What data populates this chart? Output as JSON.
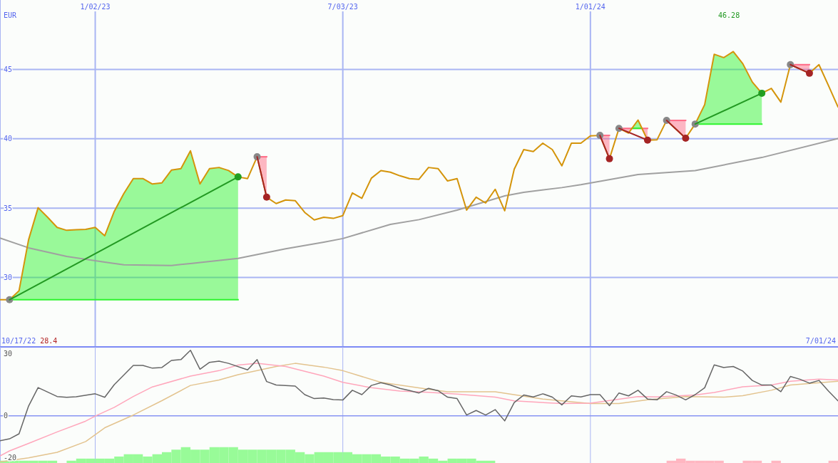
{
  "chart_data": [
    {
      "type": "line",
      "ylabel": "EUR",
      "x": [
        "2022-10-24",
        "2022-10-31",
        "2022-11-07",
        "2022-11-14",
        "2022-11-21",
        "2022-11-28",
        "2022-12-05",
        "2022-12-12",
        "2022-12-19",
        "2022-12-26",
        "2023-01-02",
        "2023-01-09",
        "2023-01-16",
        "2023-01-23",
        "2023-01-30",
        "2023-02-06",
        "2023-02-13",
        "2023-02-20",
        "2023-02-27",
        "2023-03-06",
        "2023-03-13",
        "2023-03-20",
        "2023-03-27",
        "2023-04-03",
        "2023-04-10",
        "2023-04-17",
        "2023-04-24",
        "2023-05-01",
        "2023-05-08",
        "2023-05-15",
        "2023-05-22",
        "2023-05-29",
        "2023-06-05",
        "2023-06-12",
        "2023-06-19",
        "2023-06-26",
        "2023-07-03",
        "2023-07-10",
        "2023-07-17",
        "2023-07-24",
        "2023-07-31",
        "2023-08-07",
        "2023-08-14",
        "2023-08-21",
        "2023-08-28",
        "2023-09-04",
        "2023-09-11",
        "2023-09-18",
        "2023-09-25",
        "2023-10-02",
        "2023-10-09",
        "2023-10-16",
        "2023-10-23",
        "2023-10-30",
        "2023-11-06",
        "2023-11-13",
        "2023-11-20",
        "2023-11-27",
        "2023-12-04",
        "2023-12-11",
        "2023-12-18",
        "2023-12-25",
        "2024-01-01",
        "2024-01-08",
        "2024-01-15",
        "2024-01-22",
        "2024-01-29",
        "2024-02-05",
        "2024-02-12",
        "2024-02-19",
        "2024-02-26",
        "2024-03-04",
        "2024-03-11",
        "2024-03-18",
        "2024-03-25",
        "2024-04-01",
        "2024-04-08",
        "2024-04-15",
        "2024-04-22",
        "2024-04-29",
        "2024-05-06",
        "2024-05-13",
        "2024-05-20",
        "2024-05-27",
        "2024-06-03",
        "2024-06-10",
        "2024-06-17",
        "2024-06-24",
        "2024-07-01"
      ],
      "xlim": [
        "2022-10-24",
        "2024-07-01"
      ],
      "xticks": [
        {
          "value": "2023-01-02",
          "label": "1/02/23"
        },
        {
          "value": "2023-07-03",
          "label": "7/03/23"
        },
        {
          "value": "2024-01-01",
          "label": "1/01/24"
        }
      ],
      "ylim": [
        25,
        50
      ],
      "yticks": [
        30,
        35,
        40,
        45
      ],
      "grid": true,
      "annotations": [
        "10/17/22",
        "28.4",
        "46.28",
        "7/01/24"
      ],
      "series": [
        {
          "type": "line",
          "color": "#2ef52e",
          "x": [
            "2022-10-31",
            "2022-11-07",
            "2022-11-14",
            "2022-11-21",
            "2022-11-28",
            "2022-12-05",
            "2022-12-12",
            "2022-12-19",
            "2022-12-26",
            "2023-01-02",
            "2023-01-09",
            "2023-01-16",
            "2023-01-23",
            "2023-01-30",
            "2023-02-06",
            "2023-02-13",
            "2023-02-20",
            "2023-02-27",
            "2023-03-06",
            "2023-03-13",
            "2023-03-20",
            "2023-03-27",
            "2023-04-03",
            "2023-04-10",
            "2023-04-17"
          ],
          "values": [
            28.4,
            28.4,
            28.4,
            28.4,
            28.4,
            28.4,
            28.4,
            28.4,
            28.4,
            28.4,
            28.4,
            28.4,
            28.4,
            28.4,
            28.4,
            28.4,
            28.4,
            28.4,
            28.4,
            28.4,
            28.4,
            28.4,
            28.4,
            28.4,
            28.4
          ],
          "upper": [
            28.4,
            29.05,
            32.72,
            35.03,
            34.34,
            33.61,
            33.4,
            33.44,
            33.47,
            33.61,
            33.01,
            34.77,
            36.05,
            37.13,
            37.13,
            36.74,
            36.82,
            37.74,
            37.85,
            39.13,
            36.74,
            37.85,
            37.93,
            37.71,
            37.25
          ],
          "lower": [
            28.4,
            28.4,
            28.4,
            28.4,
            28.4,
            28.4,
            28.4,
            28.4,
            28.4,
            28.4,
            28.4,
            28.4,
            28.4,
            28.4,
            28.4,
            28.4,
            28.4,
            28.4,
            28.4,
            28.4,
            28.4,
            28.4,
            28.4,
            28.4,
            28.4
          ]
        },
        {
          "type": "line",
          "color": "#ff6982",
          "x": [
            "2023-05-01",
            "2023-05-08"
          ],
          "values": [
            38.7,
            38.7
          ],
          "upper": [
            38.7,
            38.7
          ],
          "lower": [
            38.7,
            35.79
          ]
        },
        {
          "type": "line",
          "color": "#ff6983",
          "x": [
            "2024-01-08",
            "2024-01-15"
          ],
          "values": [
            40.24,
            40.24
          ],
          "upper": [
            40.24,
            40.24
          ],
          "lower": [
            40.24,
            38.56
          ]
        },
        {
          "type": "line",
          "color": "#ff6984",
          "x": [
            "2024-01-22",
            "2024-01-29",
            "2024-01-31T13:00",
            "2024-02-07T22:00",
            "2024-02-12"
          ],
          "values": [
            40.75,
            40.75,
            40.75,
            40.75,
            40.75
          ],
          "upper": [
            40.75,
            40.75,
            40.75,
            40.75,
            40.75
          ],
          "lower": [
            40.75,
            40.41,
            40.75,
            40.75,
            39.9
          ]
        },
        {
          "type": "line",
          "color": "#2ef42e",
          "x": [
            "2024-01-31T13:00",
            "2024-02-05",
            "2024-02-07T22:00"
          ],
          "values": [
            40.75,
            40.75,
            40.75
          ],
          "upper": [
            40.75,
            41.35,
            40.75
          ],
          "lower": [
            40.75,
            40.75,
            40.75
          ]
        },
        {
          "type": "line",
          "color": "#ff6985",
          "x": [
            "2024-02-26",
            "2024-03-04",
            "2024-03-11"
          ],
          "values": [
            41.32,
            41.32,
            41.32
          ],
          "upper": [
            41.32,
            41.32,
            41.32
          ],
          "lower": [
            41.32,
            40.68,
            40.04
          ]
        },
        {
          "type": "line",
          "color": "#2df52e",
          "x": [
            "2024-03-18",
            "2024-03-25",
            "2024-04-01",
            "2024-04-08",
            "2024-04-15",
            "2024-04-22",
            "2024-04-29",
            "2024-05-06"
          ],
          "values": [
            41.06,
            41.06,
            41.06,
            41.06,
            41.06,
            41.06,
            41.06,
            41.06
          ],
          "upper": [
            41.06,
            42.46,
            46.09,
            45.85,
            46.28,
            45.41,
            44.09,
            43.28
          ],
          "lower": [
            41.06,
            41.06,
            41.06,
            41.06,
            41.06,
            41.06,
            41.06,
            41.06
          ]
        },
        {
          "type": "line",
          "color": "#ff6986",
          "x": [
            "2024-05-27",
            "2024-06-03",
            "2024-06-10"
          ],
          "values": [
            45.34,
            45.34,
            45.34
          ],
          "upper": [
            45.34,
            45.34,
            45.34
          ],
          "lower": [
            45.34,
            45.03,
            44.72
          ]
        },
        {
          "color": "#a0a0a0",
          "x": [
            "2022-10-24",
            "2022-11-14",
            "2022-12-12",
            "2023-01-09",
            "2023-01-23",
            "2023-02-27",
            "2023-03-13",
            "2023-04-17",
            "2023-05-22",
            "2023-06-19",
            "2023-07-03",
            "2023-08-07",
            "2023-08-28",
            "2023-09-25",
            "2023-10-30",
            "2023-11-13",
            "2023-12-11",
            "2023-12-25",
            "2024-02-05",
            "2024-03-18",
            "2024-05-06",
            "2024-07-01"
          ],
          "values": [
            32.84,
            32.14,
            31.52,
            31.11,
            30.92,
            30.87,
            31.01,
            31.38,
            32.07,
            32.55,
            32.81,
            33.83,
            34.17,
            34.86,
            35.88,
            36.14,
            36.48,
            36.69,
            37.42,
            37.71,
            38.65,
            40.02
          ]
        },
        {
          "color": "#d4940a",
          "values": [
            28.4,
            28.4,
            29.05,
            32.72,
            35.03,
            34.34,
            33.61,
            33.4,
            33.44,
            33.47,
            33.61,
            33.01,
            34.77,
            36.05,
            37.13,
            37.13,
            36.74,
            36.82,
            37.74,
            37.85,
            39.13,
            36.74,
            37.85,
            37.93,
            37.71,
            37.25,
            37.13,
            38.7,
            35.79,
            35.33,
            35.59,
            35.54,
            34.69,
            34.15,
            34.34,
            34.26,
            34.46,
            36.1,
            35.71,
            37.16,
            37.71,
            37.59,
            37.33,
            37.13,
            37.08,
            37.93,
            37.85,
            36.96,
            37.13,
            34.86,
            35.79,
            35.37,
            36.36,
            34.81,
            37.81,
            39.22,
            39.08,
            39.68,
            39.22,
            38.05,
            39.68,
            39.68,
            40.21,
            40.24,
            38.56,
            40.75,
            40.41,
            41.35,
            39.9,
            39.93,
            41.32,
            40.68,
            40.04,
            41.06,
            42.46,
            46.09,
            45.85,
            46.28,
            45.41,
            44.09,
            43.28,
            43.63,
            42.64,
            45.34,
            45.03,
            44.72,
            45.34,
            43.83,
            42.29
          ]
        },
        {
          "type": "scatter",
          "color": "#888888",
          "marker": "circle",
          "x": [
            "2022-10-31",
            "2023-05-01",
            "2024-01-08",
            "2024-01-22",
            "2024-02-26",
            "2024-03-18",
            "2024-05-27"
          ],
          "values": [
            28.4,
            38.7,
            40.24,
            40.75,
            41.32,
            41.06,
            45.34
          ]
        },
        {
          "type": "scatter",
          "color": "#22a022",
          "marker": "circle",
          "x": [
            "2023-04-17",
            "2024-05-06"
          ],
          "values": [
            37.25,
            43.28
          ]
        },
        {
          "type": "scatter",
          "color": "#a52424",
          "marker": "circle",
          "x": [
            "2023-05-08",
            "2024-01-15",
            "2024-02-12",
            "2024-03-11",
            "2024-06-10"
          ],
          "values": [
            35.79,
            38.56,
            39.9,
            40.04,
            44.72
          ]
        },
        {
          "type": "line",
          "color": "#229922",
          "x": [
            "2022-10-31",
            "2023-04-17"
          ],
          "values": [
            28.4,
            37.25
          ]
        },
        {
          "type": "line",
          "color": "#a52424",
          "x": [
            "2023-05-01",
            "2023-05-08"
          ],
          "values": [
            38.7,
            35.79
          ]
        },
        {
          "type": "line",
          "color": "#a52424",
          "x": [
            "2024-01-08",
            "2024-01-15"
          ],
          "values": [
            40.24,
            38.56
          ]
        },
        {
          "type": "line",
          "color": "#a52424",
          "x": [
            "2024-01-22",
            "2024-02-12"
          ],
          "values": [
            40.75,
            39.9
          ]
        },
        {
          "type": "line",
          "color": "#a52424",
          "x": [
            "2024-02-26",
            "2024-03-11"
          ],
          "values": [
            41.32,
            40.04
          ]
        },
        {
          "type": "line",
          "color": "#229922",
          "x": [
            "2024-03-18",
            "2024-05-06"
          ],
          "values": [
            41.06,
            43.28
          ]
        },
        {
          "type": "line",
          "color": "#a52424",
          "x": [
            "2024-05-27",
            "2024-06-10"
          ],
          "values": [
            45.34,
            44.72
          ]
        }
      ]
    },
    {
      "type": "line",
      "xlim": [
        "2022-10-24",
        "2024-07-01"
      ],
      "xticks": [
        {
          "value": "2023-01-02",
          "label": null
        },
        {
          "value": "2023-07-03",
          "label": null
        },
        {
          "value": "2024-01-01",
          "label": null
        }
      ],
      "ylim": [
        -22.6,
        33.1
      ],
      "yticks": [
        -20,
        0,
        30
      ],
      "grid": "x",
      "tick_labels": "y",
      "ref_lines": [
        {
          "axis": "y",
          "value": 0,
          "color": "#8794f3"
        }
      ],
      "series": [
        {
          "type": "bar",
          "x": [
            "2022-10-27T12:00",
            "2022-11-03T12:00",
            "2022-11-10T12:00",
            "2022-11-17T12:00",
            "2022-11-24T12:00",
            "2022-12-01T12:00",
            "2022-12-15T12:00",
            "2022-12-22T12:00",
            "2022-12-29T12:00",
            "2023-01-05T12:00",
            "2023-01-12T12:00",
            "2023-01-19T12:00",
            "2023-01-26T12:00",
            "2023-02-02T12:00",
            "2023-02-09T12:00",
            "2023-02-16T12:00",
            "2023-02-23T12:00",
            "2023-03-02T12:00",
            "2023-03-09T12:00",
            "2023-03-16T12:00",
            "2023-03-23T12:00",
            "2023-03-30T12:00",
            "2023-04-06T12:00",
            "2023-04-13T12:00",
            "2023-04-20T12:00",
            "2023-04-27T12:00",
            "2023-05-04T12:00",
            "2023-05-11T12:00",
            "2023-05-18T12:00",
            "2023-05-25T12:00",
            "2023-06-01T12:00",
            "2023-06-08T12:00",
            "2023-06-15T12:00",
            "2023-06-22T12:00",
            "2023-06-29T12:00",
            "2023-07-06T12:00",
            "2023-07-13T12:00",
            "2023-07-20T12:00",
            "2023-07-27T12:00",
            "2023-08-03T12:00",
            "2023-08-10T12:00",
            "2023-08-17T12:00",
            "2023-08-24T12:00",
            "2023-08-31T12:00",
            "2023-09-07T12:00",
            "2023-09-14T12:00",
            "2023-09-21T12:00",
            "2023-09-28T12:00",
            "2023-10-05T12:00",
            "2023-10-12T12:00",
            "2023-10-19T12:00",
            "2024-02-29T12:00",
            "2024-03-07T12:00",
            "2024-03-14T12:00",
            "2024-03-21T12:00",
            "2024-03-28T12:00",
            "2024-04-04T12:00",
            "2024-04-25T12:00",
            "2024-05-02T12:00",
            "2024-05-16T12:00",
            "2024-06-27T12:00"
          ],
          "values": [
            1.1,
            1.1,
            1.1,
            1.1,
            1.1,
            1.1,
            1.1,
            2.1,
            2.1,
            2.1,
            2.1,
            3.1,
            4.2,
            4.2,
            3.1,
            4.2,
            5.2,
            6.4,
            7.6,
            6.4,
            6.4,
            7.6,
            7.6,
            7.6,
            6.4,
            6.4,
            6.4,
            6.4,
            6.4,
            6.4,
            5.2,
            4.2,
            5.2,
            5.2,
            5.2,
            5.2,
            4.2,
            4.2,
            4.2,
            3.1,
            3.1,
            2.1,
            2.1,
            3.1,
            2.1,
            1.1,
            2.1,
            2.1,
            2.1,
            1.1,
            1.1,
            1.1,
            2.1,
            1.1,
            1.1,
            1.1,
            1.1,
            1.1,
            1.1,
            1.1,
            1.1
          ],
          "base": [
            -22.6,
            -22.6,
            -22.6,
            -22.6,
            -22.6,
            -22.6,
            -22.6,
            -22.6,
            -22.6,
            -22.6,
            -22.6,
            -22.6,
            -22.6,
            -22.6,
            -22.6,
            -22.6,
            -22.6,
            -22.6,
            -22.6,
            -22.6,
            -22.6,
            -22.6,
            -22.6,
            -22.6,
            -22.6,
            -22.6,
            -22.6,
            -22.6,
            -22.6,
            -22.6,
            -22.6,
            -22.6,
            -22.6,
            -22.6,
            -22.6,
            -22.6,
            -22.6,
            -22.6,
            -22.6,
            -22.6,
            -22.6,
            -22.6,
            -22.6,
            -22.6,
            -22.6,
            -22.6,
            -22.6,
            -22.6,
            -22.6,
            -22.6,
            -22.6,
            -22.6,
            -22.6,
            -22.6,
            -22.6,
            -22.6,
            -22.6,
            -22.6,
            -22.6,
            -22.6,
            -22.6
          ],
          "colors": [
            "#98fb98",
            "#98fb98",
            "#98fb98",
            "#98fb98",
            "#98fb98",
            "#98fb98",
            "#98fb98",
            "#98fb98",
            "#98fb98",
            "#98fb98",
            "#98fb98",
            "#98fb98",
            "#98fb98",
            "#98fb98",
            "#98fb98",
            "#98fb98",
            "#98fb98",
            "#98fb98",
            "#98fb98",
            "#98fb98",
            "#98fb98",
            "#98fb98",
            "#98fb98",
            "#98fb98",
            "#98fb98",
            "#98fb98",
            "#98fb98",
            "#98fb98",
            "#98fb98",
            "#98fb98",
            "#98fb98",
            "#98fb98",
            "#98fb98",
            "#98fb98",
            "#98fb98",
            "#98fb98",
            "#98fb98",
            "#98fb98",
            "#98fb98",
            "#98fb98",
            "#98fb98",
            "#98fb98",
            "#98fb98",
            "#98fb98",
            "#98fb98",
            "#98fb98",
            "#98fb98",
            "#98fb98",
            "#98fb98",
            "#98fb98",
            "#98fb98",
            "#ffb6c1",
            "#ffb6c1",
            "#ffb6c1",
            "#ffb6c1",
            "#ffb6c1",
            "#ffb6c1",
            "#ffb6c1",
            "#ffb6c1",
            "#ffb6c1",
            "#ffb6c1"
          ]
        },
        {
          "color": "#e3c38e",
          "x": [
            "2022-10-24",
            "2022-11-14",
            "2022-12-05",
            "2022-12-26",
            "2023-01-09",
            "2023-01-30",
            "2023-02-20",
            "2023-03-13",
            "2023-04-03",
            "2023-04-17",
            "2023-05-15",
            "2023-05-29",
            "2023-06-19",
            "2023-07-03",
            "2023-07-31",
            "2023-09-04",
            "2023-09-18",
            "2023-10-23",
            "2023-11-27",
            "2023-12-11",
            "2024-01-01",
            "2024-01-22",
            "2024-02-12",
            "2024-03-11",
            "2024-04-08",
            "2024-04-22",
            "2024-05-13",
            "2024-05-27",
            "2024-07-01"
          ],
          "values": [
            -22.1,
            -20.1,
            -17.5,
            -12.3,
            -5.7,
            0.4,
            7.3,
            14.6,
            17.2,
            19.8,
            23.7,
            25.2,
            23.4,
            21.7,
            16.1,
            12.8,
            11.6,
            11.6,
            8.1,
            7.2,
            5.9,
            5.9,
            7.7,
            9.3,
            9.0,
            9.7,
            12.3,
            14.8,
            16.6
          ]
        },
        {
          "color": "#ffa6bb",
          "x": [
            "2022-10-24",
            "2022-10-31",
            "2022-11-14",
            "2022-12-05",
            "2022-12-26",
            "2023-01-02",
            "2023-01-16",
            "2023-01-30",
            "2023-02-13",
            "2023-03-13",
            "2023-04-03",
            "2023-04-17",
            "2023-05-01",
            "2023-05-22",
            "2023-06-19",
            "2023-07-03",
            "2023-07-24",
            "2023-08-14",
            "2023-09-04",
            "2023-09-25",
            "2023-10-23",
            "2023-11-06",
            "2023-12-11",
            "2024-01-01",
            "2024-02-05",
            "2024-02-19",
            "2024-03-18",
            "2024-04-01",
            "2024-04-22",
            "2024-05-13",
            "2024-05-27",
            "2024-06-17",
            "2024-07-01"
          ],
          "values": [
            -19.2,
            -16.8,
            -13.2,
            -7.7,
            -2.5,
            -0.1,
            4.1,
            9.3,
            13.9,
            19.1,
            21.7,
            24.4,
            25.2,
            23.7,
            19.1,
            16.1,
            13.5,
            11.9,
            11.3,
            10.5,
            9.0,
            7.2,
            5.9,
            6.1,
            9.3,
            9.1,
            10.0,
            11.2,
            14.0,
            14.8,
            16.6,
            17.6,
            17.2
          ]
        },
        {
          "color": "#666666",
          "x": [
            "2022-10-24",
            "2022-10-31",
            "2022-11-07",
            "2022-11-14",
            "2022-11-21",
            "2022-12-05",
            "2022-12-12",
            "2022-12-19",
            "2023-01-02",
            "2023-01-09",
            "2023-01-16",
            "2023-01-30",
            "2023-02-06",
            "2023-02-13",
            "2023-02-20",
            "2023-02-27",
            "2023-03-06",
            "2023-03-13",
            "2023-03-20",
            "2023-03-27",
            "2023-04-03",
            "2023-04-10",
            "2023-04-24",
            "2023-05-01",
            "2023-05-08",
            "2023-05-15",
            "2023-05-29",
            "2023-06-05",
            "2023-06-12",
            "2023-06-19",
            "2023-06-26",
            "2023-07-03",
            "2023-07-10",
            "2023-07-17",
            "2023-07-24",
            "2023-07-31",
            "2023-08-07",
            "2023-08-14",
            "2023-08-21",
            "2023-08-28",
            "2023-09-04",
            "2023-09-11",
            "2023-09-18",
            "2023-09-25",
            "2023-10-02",
            "2023-10-09",
            "2023-10-16",
            "2023-10-23",
            "2023-10-30",
            "2023-11-06",
            "2023-11-13",
            "2023-11-20",
            "2023-11-27",
            "2023-12-04",
            "2023-12-11",
            "2023-12-18",
            "2023-12-25",
            "2024-01-01",
            "2024-01-08",
            "2024-01-15",
            "2024-01-22",
            "2024-01-29",
            "2024-02-05",
            "2024-02-12",
            "2024-02-19",
            "2024-02-26",
            "2024-03-04",
            "2024-03-11",
            "2024-03-18",
            "2024-03-25",
            "2024-04-01",
            "2024-04-08",
            "2024-04-15",
            "2024-04-22",
            "2024-04-29",
            "2024-05-06",
            "2024-05-13",
            "2024-05-20",
            "2024-05-27",
            "2024-06-03",
            "2024-06-10",
            "2024-06-17",
            "2024-06-24",
            "2024-07-01"
          ],
          "values": [
            -11.9,
            -11.0,
            -8.6,
            4.7,
            13.6,
            9.3,
            8.9,
            9.2,
            10.6,
            8.9,
            15.0,
            24.2,
            24.2,
            22.9,
            23.2,
            26.6,
            27.0,
            31.5,
            22.4,
            25.7,
            26.3,
            25.2,
            22.1,
            27.0,
            16.5,
            14.8,
            14.3,
            10.2,
            8.3,
            8.6,
            7.8,
            7.6,
            12.3,
            10.2,
            14.6,
            15.9,
            14.8,
            13.2,
            12.2,
            11.0,
            13.2,
            12.1,
            9.0,
            8.3,
            0.4,
            2.6,
            0.4,
            3.0,
            -2.4,
            6.4,
            10.0,
            9.1,
            10.6,
            9.0,
            5.3,
            9.6,
            9.1,
            10.2,
            10.2,
            4.9,
            11.0,
            9.6,
            12.3,
            8.1,
            7.7,
            11.6,
            10.0,
            7.7,
            10.2,
            13.5,
            24.5,
            23.2,
            23.7,
            21.5,
            17.0,
            14.8,
            14.8,
            11.6,
            18.9,
            17.6,
            15.7,
            17.0,
            11.9,
            7.2
          ]
        }
      ]
    }
  ]
}
